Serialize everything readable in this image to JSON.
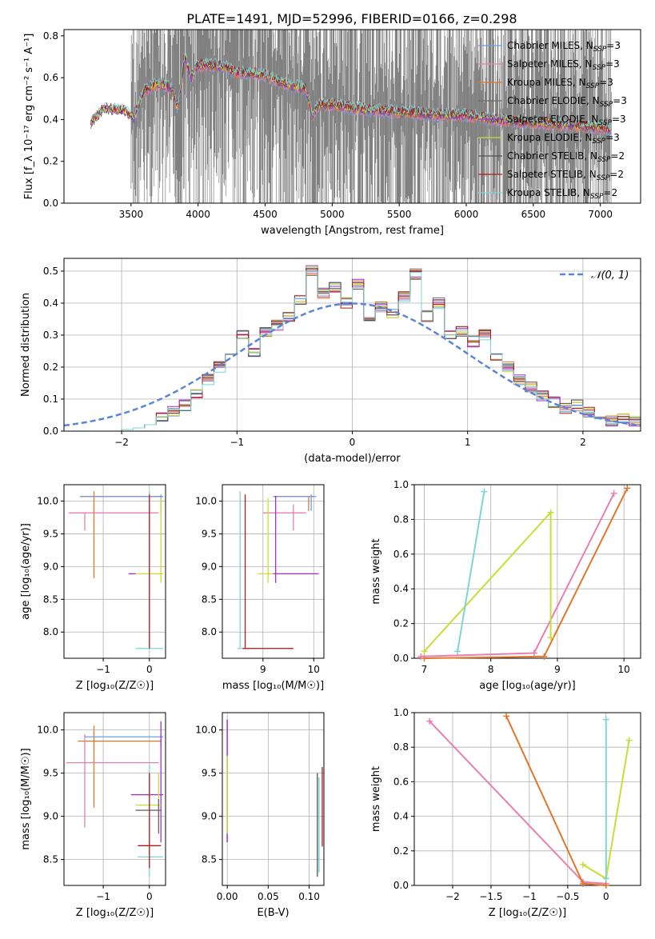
{
  "figure": {
    "title": "PLATE=1491, MJD=52996, FIBERID=0166, z=0.298",
    "colors": {
      "Chabrier MILES": "#6f9be0",
      "Salpeter MILES": "#e87fb0",
      "Kroupa MILES": "#e0772a",
      "Chabrier ELODIE": "#6a6a6a",
      "Salpeter ELODIE": "#a32fcf",
      "Kroupa ELODIE": "#c9dd34",
      "Chabrier STELIB": "#4f4f4f",
      "Salpeter STELIB": "#b21a1a",
      "Kroupa STELIB": "#7fd4d4",
      "normal_curve": "#5b85d6",
      "grid": "#b0b0b0",
      "noise": "#808080"
    }
  },
  "chart_data": [
    {
      "id": "spectrum",
      "type": "line",
      "xlabel": "wavelength [Angstrom, rest frame]",
      "ylabel": "Flux [f_λ 10⁻¹⁷ erg cm⁻² s⁻¹ A⁻¹]",
      "xlim": [
        3000,
        7300
      ],
      "ylim": [
        0,
        0.83
      ],
      "xticks": [
        3500,
        4000,
        4500,
        5000,
        5500,
        6000,
        6500,
        7000
      ],
      "yticks": [
        0.0,
        0.2,
        0.4,
        0.6,
        0.8
      ],
      "grid": false,
      "legend_position": "upper right",
      "legend": [
        {
          "label": "Chabrier MILES, N",
          "sub": "SSP",
          "suffix": "=3",
          "key": "Chabrier MILES"
        },
        {
          "label": "Salpeter MILES, N",
          "sub": "SSP",
          "suffix": "=3",
          "key": "Salpeter MILES"
        },
        {
          "label": "Kroupa MILES, N",
          "sub": "SSP",
          "suffix": "=3",
          "key": "Kroupa MILES"
        },
        {
          "label": "Chabrier ELODIE, N",
          "sub": "SSP",
          "suffix": "=3",
          "key": "Chabrier ELODIE"
        },
        {
          "label": "Salpeter ELODIE, N",
          "sub": "SSP",
          "suffix": "=3",
          "key": "Salpeter ELODIE"
        },
        {
          "label": "Kroupa ELODIE, N",
          "sub": "SSP",
          "suffix": "=3",
          "key": "Kroupa ELODIE"
        },
        {
          "label": "Chabrier STELIB, N",
          "sub": "SSP",
          "suffix": "=2",
          "key": "Chabrier STELIB"
        },
        {
          "label": "Salpeter STELIB, N",
          "sub": "SSP",
          "suffix": "=2",
          "key": "Salpeter STELIB"
        },
        {
          "label": "Kroupa STELIB, N",
          "sub": "SSP",
          "suffix": "=2",
          "key": "Kroupa STELIB"
        }
      ],
      "noise_range": [
        3500,
        7080
      ],
      "model_range": [
        3200,
        7080
      ],
      "continuum": {
        "x": [
          3200,
          3300,
          3450,
          3520,
          3600,
          3700,
          3800,
          3850,
          3900,
          3950,
          4000,
          4100,
          4200,
          4300,
          4400,
          4500,
          4600,
          4700,
          4800,
          4850,
          4900,
          5000,
          5200,
          5400,
          5600,
          5800,
          6000,
          6200,
          6400,
          6600,
          6800,
          7000,
          7080
        ],
        "y": [
          0.38,
          0.45,
          0.44,
          0.4,
          0.54,
          0.57,
          0.55,
          0.45,
          0.7,
          0.6,
          0.66,
          0.66,
          0.65,
          0.62,
          0.62,
          0.61,
          0.58,
          0.56,
          0.55,
          0.42,
          0.47,
          0.47,
          0.45,
          0.44,
          0.43,
          0.42,
          0.42,
          0.4,
          0.39,
          0.38,
          0.37,
          0.36,
          0.35
        ]
      }
    },
    {
      "id": "residuals",
      "type": "line",
      "xlabel": "(data-model)/error",
      "ylabel": "Normed distribution",
      "xlim": [
        -2.5,
        2.5
      ],
      "ylim": [
        0,
        0.54
      ],
      "xticks": [
        -2,
        -1,
        0,
        1,
        2
      ],
      "yticks": [
        0.0,
        0.1,
        0.2,
        0.3,
        0.4,
        0.5
      ],
      "grid": true,
      "legend_position": "upper right",
      "legend": [
        {
          "label": "𝒩(0, 1)",
          "style": "dashed"
        }
      ],
      "bin_edges": [
        -2.5,
        -2.4,
        -2.3,
        -2.2,
        -2.1,
        -2.0,
        -1.9,
        -1.8,
        -1.7,
        -1.6,
        -1.5,
        -1.4,
        -1.3,
        -1.2,
        -1.1,
        -1.0,
        -0.9,
        -0.8,
        -0.7,
        -0.6,
        -0.5,
        -0.4,
        -0.3,
        -0.2,
        -0.1,
        0.0,
        0.1,
        0.2,
        0.3,
        0.4,
        0.5,
        0.6,
        0.7,
        0.8,
        0.9,
        1.0,
        1.1,
        1.2,
        1.3,
        1.4,
        1.5,
        1.6,
        1.7,
        1.8,
        1.9,
        2.0,
        2.1,
        2.2,
        2.3,
        2.4,
        2.5
      ],
      "histogram": [
        0.0,
        0.0,
        0.0,
        0.0,
        0.0,
        0.005,
        0.01,
        0.02,
        0.04,
        0.06,
        0.08,
        0.12,
        0.16,
        0.2,
        0.23,
        0.3,
        0.25,
        0.31,
        0.33,
        0.36,
        0.41,
        0.5,
        0.43,
        0.45,
        0.4,
        0.46,
        0.34,
        0.39,
        0.37,
        0.42,
        0.49,
        0.36,
        0.4,
        0.3,
        0.31,
        0.28,
        0.3,
        0.23,
        0.2,
        0.16,
        0.14,
        0.11,
        0.09,
        0.07,
        0.08,
        0.06,
        0.04,
        0.03,
        0.04,
        0.03
      ]
    },
    {
      "id": "age_vs_Z",
      "type": "scatter",
      "xlabel": "Z [log₁₀(Z/Z☉)]",
      "ylabel": "age  [log₁₀(age/yr)]",
      "xlim": [
        -1.85,
        0.35
      ],
      "ylim": [
        7.6,
        10.25
      ],
      "xticks": [
        -1,
        0
      ],
      "yticks": [
        8.0,
        8.5,
        9.0,
        9.5,
        10.0
      ],
      "grid": true
    },
    {
      "id": "age_vs_mass",
      "type": "scatter",
      "xlabel": "mass [log₁₀(M/M☉)]",
      "ylabel": "",
      "xlim": [
        8.2,
        10.2
      ],
      "ylim": [
        7.6,
        10.25
      ],
      "xticks": [
        9,
        10
      ],
      "yticks": [
        8.0,
        8.5,
        9.0,
        9.5,
        10.0
      ],
      "grid": true
    },
    {
      "id": "weight_vs_age",
      "type": "line",
      "xlabel": "age  [log₁₀(age/yr)]",
      "ylabel": "mass weight",
      "xlim": [
        6.85,
        10.25
      ],
      "ylim": [
        0,
        1.0
      ],
      "xticks": [
        7,
        8,
        9,
        10
      ],
      "yticks": [
        0.0,
        0.2,
        0.4,
        0.6,
        0.8,
        1.0
      ],
      "grid": true,
      "series": [
        {
          "key": "Kroupa MILES",
          "x": [
            7.0,
            8.8,
            10.05
          ],
          "y": [
            0.0,
            0.01,
            0.98
          ]
        },
        {
          "key": "Salpeter MILES",
          "x": [
            6.95,
            8.65,
            9.85
          ],
          "y": [
            0.01,
            0.03,
            0.95
          ]
        },
        {
          "key": "Kroupa ELODIE",
          "x": [
            7.0,
            8.9,
            8.9
          ],
          "y": [
            0.04,
            0.84,
            0.12
          ]
        },
        {
          "key": "Kroupa STELIB",
          "x": [
            7.5,
            7.9
          ],
          "y": [
            0.04,
            0.96
          ]
        }
      ]
    },
    {
      "id": "mass_vs_Z",
      "type": "scatter",
      "xlabel": "Z [log₁₀(Z/Z☉)]",
      "ylabel": "mass [log₁₀(M/M☉)]",
      "xlim": [
        -1.85,
        0.35
      ],
      "ylim": [
        8.2,
        10.2
      ],
      "xticks": [
        -1,
        0
      ],
      "yticks": [
        8.5,
        9.0,
        9.5,
        10.0
      ],
      "grid": true
    },
    {
      "id": "mass_vs_ebv",
      "type": "scatter",
      "xlabel": "E(B-V)",
      "ylabel": "",
      "xlim": [
        -0.006,
        0.118
      ],
      "ylim": [
        8.2,
        10.2
      ],
      "xticks": [
        0.0,
        0.05,
        0.1
      ],
      "xticklabels": [
        "0.00",
        "0.05",
        "0.10"
      ],
      "yticks": [
        8.5,
        9.0,
        9.5,
        10.0
      ],
      "grid": true
    },
    {
      "id": "weight_vs_Z",
      "type": "line",
      "xlabel": "Z [log₁₀(Z/Z☉)]",
      "ylabel": "mass weight",
      "xlim": [
        -2.5,
        0.45
      ],
      "ylim": [
        0,
        1.0
      ],
      "xticks": [
        -2.0,
        -1.5,
        -1.0,
        -0.5,
        0.0
      ],
      "yticks": [
        0.0,
        0.2,
        0.4,
        0.6,
        0.8,
        1.0
      ],
      "grid": true,
      "series": [
        {
          "key": "Salpeter MILES",
          "x": [
            -2.3,
            -0.3,
            0.0
          ],
          "y": [
            0.95,
            0.02,
            0.01
          ]
        },
        {
          "key": "Kroupa MILES",
          "x": [
            -1.3,
            -0.3,
            0.0
          ],
          "y": [
            0.98,
            0.01,
            0.0
          ]
        },
        {
          "key": "Kroupa ELODIE",
          "x": [
            0.3,
            0.0,
            -0.3
          ],
          "y": [
            0.84,
            0.04,
            0.12
          ]
        },
        {
          "key": "Kroupa STELIB",
          "x": [
            0.0,
            0.0
          ],
          "y": [
            0.04,
            0.96
          ]
        }
      ]
    }
  ]
}
